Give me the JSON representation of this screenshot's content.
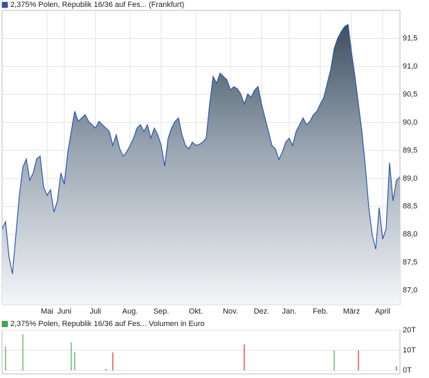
{
  "chart_data": [
    {
      "type": "area",
      "title": "2,375% Polen, Republik 16/36 auf Fes... (Frankfurt)",
      "color": "#2b55b0",
      "values": [
        88.1,
        88.23,
        87.6,
        87.3,
        88.0,
        88.7,
        89.2,
        89.35,
        88.97,
        89.1,
        89.35,
        89.4,
        88.85,
        88.7,
        88.8,
        88.4,
        88.6,
        89.1,
        88.9,
        89.47,
        89.84,
        90.2,
        90.02,
        90.08,
        90.14,
        90.02,
        89.96,
        89.9,
        90.02,
        89.96,
        89.9,
        89.84,
        89.59,
        89.78,
        89.53,
        89.4,
        89.47,
        89.59,
        89.72,
        89.9,
        89.96,
        89.84,
        89.96,
        89.72,
        89.9,
        89.78,
        89.59,
        89.22,
        89.72,
        89.9,
        90.02,
        90.08,
        89.78,
        89.59,
        89.53,
        89.65,
        89.59,
        89.61,
        89.65,
        89.72,
        90.33,
        90.82,
        90.7,
        90.88,
        90.82,
        90.76,
        90.58,
        90.64,
        90.6,
        90.51,
        90.33,
        90.51,
        90.45,
        90.58,
        90.64,
        90.33,
        90.08,
        89.84,
        89.59,
        89.53,
        89.34,
        89.47,
        89.65,
        89.72,
        89.59,
        89.84,
        89.96,
        90.08,
        89.96,
        90.02,
        90.14,
        90.2,
        90.33,
        90.45,
        90.7,
        90.95,
        91.32,
        91.5,
        91.62,
        91.71,
        91.75,
        91.25,
        90.82,
        90.33,
        89.84,
        89.22,
        88.48,
        87.99,
        87.74,
        88.48,
        87.92,
        88.1,
        89.28,
        88.6,
        88.97,
        89.03
      ],
      "xlim": [
        0,
        115
      ],
      "xticks": [
        {
          "value": 13,
          "label": "Mai"
        },
        {
          "value": 18,
          "label": "Juni"
        },
        {
          "value": 27,
          "label": "Juli"
        },
        {
          "value": 37,
          "label": "Aug."
        },
        {
          "value": 46,
          "label": "Sep."
        },
        {
          "value": 56,
          "label": "Okt."
        },
        {
          "value": 66,
          "label": "Nov."
        },
        {
          "value": 75,
          "label": "Dez."
        },
        {
          "value": 83,
          "label": "Jan."
        },
        {
          "value": 92,
          "label": "Feb."
        },
        {
          "value": 101,
          "label": "März"
        },
        {
          "value": 110,
          "label": "April"
        }
      ],
      "ylim": [
        86.75,
        92.0
      ],
      "yticks": [
        {
          "value": 87,
          "label": "87,0"
        },
        {
          "value": 87.5,
          "label": "87,5"
        },
        {
          "value": 88,
          "label": "88,0"
        },
        {
          "value": 88.5,
          "label": "88,5"
        },
        {
          "value": 89,
          "label": "89,0"
        },
        {
          "value": 89.5,
          "label": "89,5"
        },
        {
          "value": 90,
          "label": "90,0"
        },
        {
          "value": 90.5,
          "label": "90,5"
        },
        {
          "value": 91,
          "label": "91,0"
        },
        {
          "value": 91.5,
          "label": "91,5"
        }
      ],
      "grid": true
    },
    {
      "type": "bar",
      "title": "2,375% Polen, Republik 16/36 auf Fes... Volumen in Euro",
      "color": "#3fae49",
      "x": [
        1,
        6,
        20,
        21,
        30,
        32,
        70,
        96,
        103,
        114
      ],
      "values": [
        12,
        18,
        14,
        9,
        0.7,
        9,
        13,
        10,
        10,
        2
      ],
      "colors": [
        "#3fae49",
        "#3fae49",
        "#3fae49",
        "#3fae49",
        "#d62c2c",
        "#d62c2c",
        "#d62c2c",
        "#3fae49",
        "#d62c2c",
        "#d62c2c"
      ],
      "xlim": [
        0,
        115
      ],
      "ylim": [
        0,
        20
      ],
      "yticks": [
        {
          "value": 0,
          "label": "0T"
        },
        {
          "value": 10,
          "label": "10T"
        },
        {
          "value": 20,
          "label": "20T"
        }
      ],
      "grid": true
    }
  ]
}
